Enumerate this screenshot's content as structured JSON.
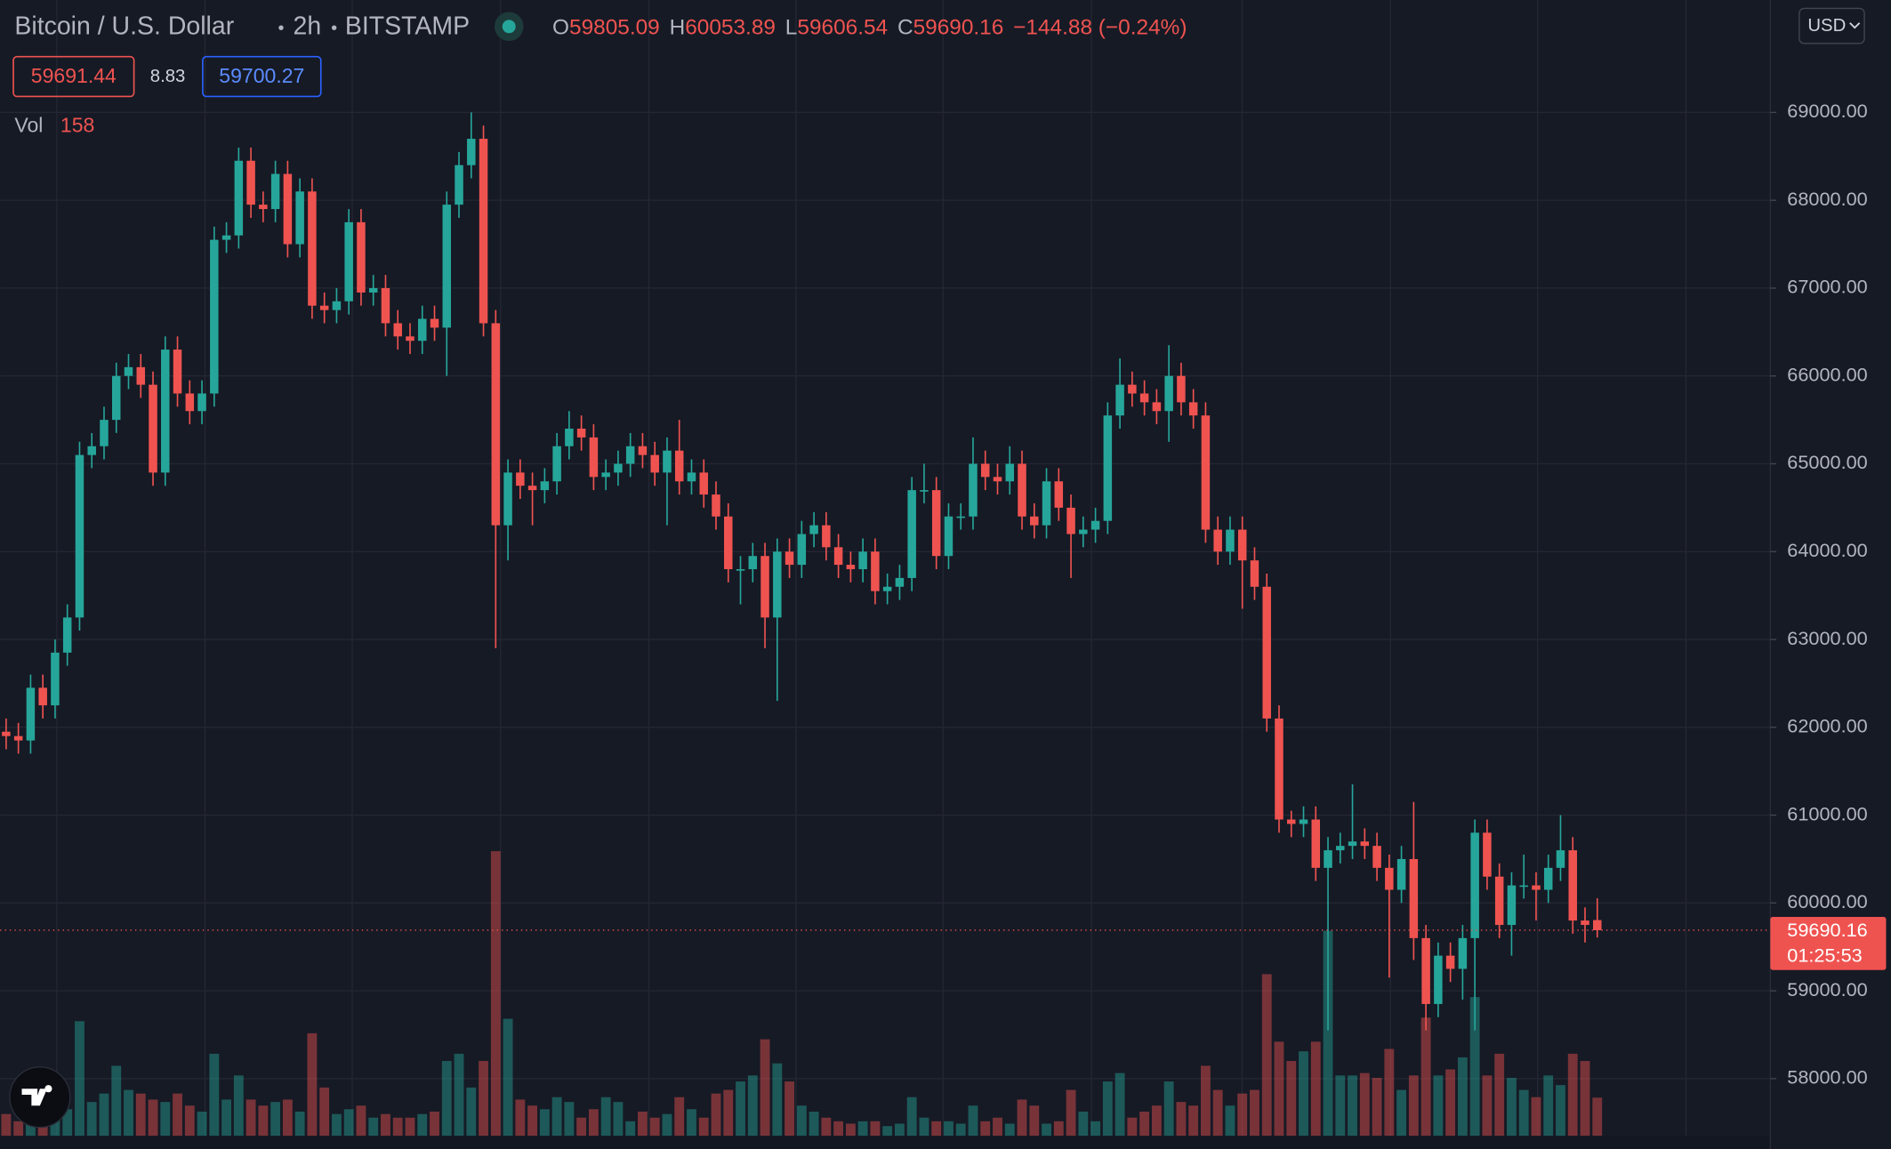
{
  "chart_data": {
    "type": "candlestick",
    "title": "Bitcoin / U.S. Dollar",
    "interval": "2h",
    "exchange": "BITSTAMP",
    "ohlc_labels": [
      "O",
      "H",
      "L",
      "C"
    ],
    "change": "−144.88 (−0.24%)",
    "bid": 59691.44,
    "spread": 8.83,
    "ask": 59700.27,
    "volume_label": "Vol",
    "currency": "USD",
    "countdown": "01:25:53",
    "up_color": "#26a69a",
    "down_color": "#ef5350",
    "grid": true,
    "ylim": [
      57350,
      70280
    ],
    "yticks": [
      {
        "value": 58000,
        "label": "58000.00"
      },
      {
        "value": 59000,
        "label": "59000.00"
      },
      {
        "value": 60000,
        "label": "60000.00"
      },
      {
        "value": 61000,
        "label": "61000.00"
      },
      {
        "value": 62000,
        "label": "62000.00"
      },
      {
        "value": 63000,
        "label": "63000.00"
      },
      {
        "value": 64000,
        "label": "64000.00"
      },
      {
        "value": 65000,
        "label": "65000.00"
      },
      {
        "value": 66000,
        "label": "66000.00"
      },
      {
        "value": 67000,
        "label": "67000.00"
      },
      {
        "value": 68000,
        "label": "68000.00"
      },
      {
        "value": 69000,
        "label": "69000.00"
      }
    ],
    "open": [
      61950,
      61900,
      61850,
      62450,
      62250,
      62850,
      63250,
      65100,
      65200,
      65500,
      66000,
      66100,
      65900,
      64900,
      66300,
      65800,
      65600,
      65800,
      67550,
      67600,
      68450,
      67950,
      67900,
      68300,
      67500,
      68100,
      66800,
      66750,
      66850,
      67750,
      66950,
      67000,
      66600,
      66450,
      66400,
      66650,
      66550,
      67950,
      68400,
      68700,
      66600,
      64300,
      64900,
      64750,
      64700,
      64800,
      65200,
      65400,
      65300,
      64850,
      64900,
      65000,
      65200,
      65100,
      64900,
      65150,
      64800,
      64900,
      64650,
      64400,
      63800,
      63800,
      63950,
      63250,
      64000,
      63850,
      64200,
      64300,
      64050,
      63850,
      63800,
      64000,
      63550,
      63600,
      63700,
      64700,
      64700,
      63950,
      64400,
      64400,
      65000,
      64850,
      64800,
      65000,
      64400,
      64300,
      64800,
      64500,
      64200,
      64250,
      64350,
      65550,
      65900,
      65800,
      65700,
      65600,
      66000,
      65700,
      65550,
      64250,
      64000,
      64250,
      63900,
      63600,
      62100,
      60950,
      60900,
      60950,
      60400,
      60600,
      60650,
      60700,
      60650,
      60400,
      60150,
      60500,
      59600,
      58850,
      59400,
      59250,
      59600,
      60800,
      60300,
      59750,
      60200,
      60200,
      60150,
      60400,
      60600,
      59800,
      59805.09
    ],
    "high": [
      62100,
      62050,
      62600,
      62600,
      63000,
      63400,
      65250,
      65350,
      65650,
      66150,
      66250,
      66250,
      66050,
      66450,
      66450,
      65950,
      65950,
      67700,
      67750,
      68600,
      68600,
      68100,
      68450,
      68450,
      68250,
      68250,
      66950,
      67000,
      67900,
      67900,
      67150,
      67150,
      66750,
      66600,
      66800,
      66800,
      68100,
      68550,
      69000,
      68850,
      66750,
      65050,
      65050,
      64900,
      64950,
      65350,
      65600,
      65550,
      65450,
      65050,
      65150,
      65350,
      65350,
      65250,
      65300,
      65500,
      65050,
      65050,
      64800,
      64550,
      63950,
      64100,
      64100,
      64150,
      64150,
      64350,
      64450,
      64450,
      64200,
      64000,
      64150,
      64150,
      63750,
      63850,
      64850,
      65000,
      64850,
      64550,
      64550,
      65300,
      65150,
      65000,
      65200,
      65150,
      64550,
      64950,
      64950,
      64650,
      64400,
      64500,
      65700,
      66200,
      66050,
      65950,
      65850,
      66350,
      66150,
      65850,
      65700,
      64400,
      64400,
      64400,
      64050,
      63750,
      62250,
      61050,
      61100,
      61100,
      60750,
      60800,
      61350,
      60850,
      60800,
      60550,
      60650,
      61150,
      59750,
      59550,
      59550,
      59750,
      60950,
      60950,
      60450,
      60350,
      60550,
      60350,
      60550,
      61000,
      60750,
      59950,
      60053.89
    ],
    "low": [
      61750,
      61700,
      61700,
      62100,
      62100,
      62700,
      63100,
      64950,
      65050,
      65350,
      65850,
      65750,
      64750,
      64750,
      65650,
      65450,
      65450,
      65650,
      67400,
      67450,
      67800,
      67750,
      67750,
      67350,
      67350,
      66650,
      66600,
      66600,
      66700,
      66800,
      66800,
      66450,
      66300,
      66250,
      66250,
      66400,
      66000,
      67800,
      68250,
      66450,
      62900,
      63900,
      64600,
      64300,
      64550,
      64650,
      65050,
      65150,
      64700,
      64700,
      64750,
      64850,
      64950,
      64750,
      64300,
      64650,
      64650,
      64500,
      64250,
      63650,
      63400,
      63650,
      62900,
      62300,
      63700,
      63700,
      64050,
      63900,
      63700,
      63650,
      63650,
      63400,
      63400,
      63450,
      63550,
      64550,
      63800,
      63800,
      64250,
      64250,
      64700,
      64650,
      64650,
      64250,
      64150,
      64150,
      64350,
      63700,
      64050,
      64100,
      64200,
      65400,
      65650,
      65550,
      65450,
      65250,
      65550,
      65400,
      64100,
      63850,
      63850,
      63350,
      63450,
      61950,
      60800,
      60750,
      60750,
      60250,
      58550,
      60450,
      60500,
      60500,
      60250,
      59150,
      60000,
      59350,
      58550,
      58700,
      59100,
      58900,
      58550,
      60150,
      59600,
      59400,
      60050,
      59800,
      60000,
      60250,
      59650,
      59550,
      59606.54
    ],
    "close": [
      61900,
      61850,
      62450,
      62250,
      62850,
      63250,
      65100,
      65200,
      65500,
      66000,
      66100,
      65900,
      64900,
      66300,
      65800,
      65600,
      65800,
      67550,
      67600,
      68450,
      67950,
      67900,
      68300,
      67500,
      68100,
      66800,
      66750,
      66850,
      67750,
      66950,
      67000,
      66600,
      66450,
      66400,
      66650,
      66550,
      67950,
      68400,
      68700,
      66600,
      64300,
      64900,
      64750,
      64700,
      64800,
      65200,
      65400,
      65300,
      64850,
      64900,
      65000,
      65200,
      65100,
      64900,
      65150,
      64800,
      64900,
      64650,
      64400,
      63800,
      63800,
      63950,
      63250,
      64000,
      63850,
      64200,
      64300,
      64050,
      63850,
      63800,
      64000,
      63550,
      63600,
      63700,
      64700,
      64700,
      63950,
      64400,
      64400,
      65000,
      64850,
      64800,
      65000,
      64400,
      64300,
      64800,
      64500,
      64200,
      64250,
      64350,
      65550,
      65900,
      65800,
      65700,
      65600,
      66000,
      65700,
      65550,
      64250,
      64000,
      64250,
      63900,
      63600,
      62100,
      60950,
      60900,
      60950,
      60400,
      60600,
      60650,
      60700,
      60650,
      60400,
      60150,
      60500,
      59600,
      58850,
      59400,
      59250,
      59600,
      60800,
      60300,
      59750,
      60200,
      60200,
      60150,
      60400,
      60600,
      59800,
      59750,
      59690.16
    ],
    "volume": [
      90,
      60,
      125,
      100,
      100,
      110,
      475,
      140,
      175,
      290,
      190,
      175,
      150,
      140,
      175,
      125,
      100,
      340,
      150,
      250,
      150,
      125,
      140,
      150,
      100,
      425,
      200,
      90,
      110,
      125,
      75,
      90,
      75,
      75,
      90,
      100,
      310,
      340,
      200,
      310,
      1180,
      485,
      150,
      125,
      110,
      160,
      140,
      75,
      110,
      160,
      140,
      60,
      100,
      75,
      90,
      160,
      110,
      75,
      175,
      190,
      225,
      250,
      400,
      300,
      225,
      125,
      100,
      75,
      60,
      50,
      60,
      60,
      40,
      50,
      160,
      75,
      60,
      60,
      50,
      125,
      60,
      75,
      50,
      150,
      125,
      50,
      60,
      190,
      100,
      60,
      225,
      260,
      75,
      100,
      125,
      225,
      140,
      125,
      290,
      190,
      125,
      175,
      190,
      670,
      390,
      310,
      350,
      390,
      850,
      250,
      250,
      260,
      240,
      360,
      190,
      250,
      490,
      250,
      275,
      325,
      575,
      250,
      340,
      240,
      190,
      160,
      250,
      210,
      340,
      310,
      158
    ]
  }
}
